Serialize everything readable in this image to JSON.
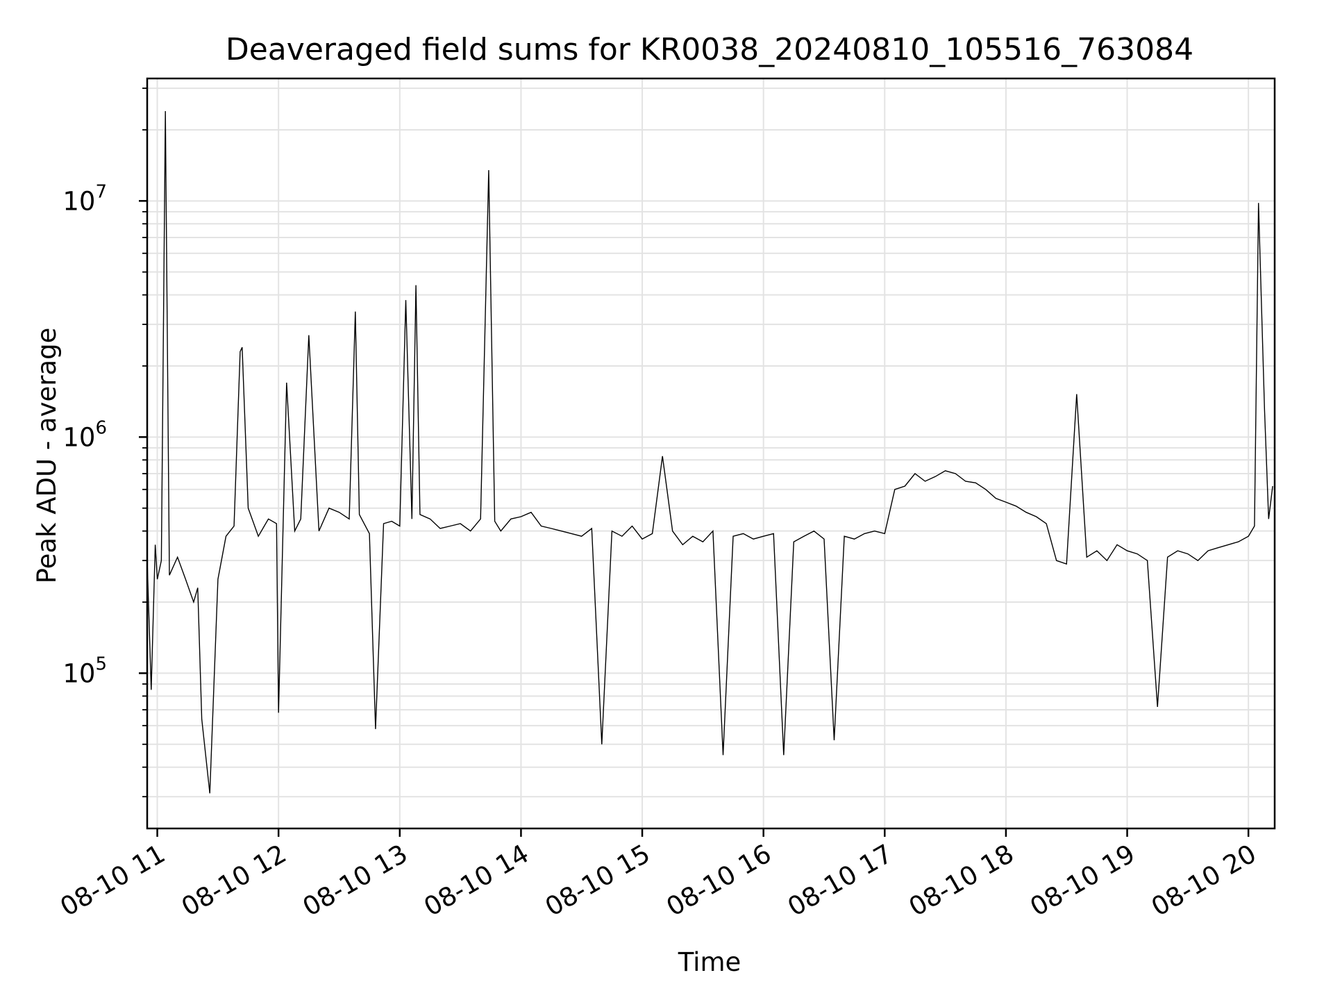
{
  "chart_data": {
    "type": "line",
    "title": "Deaveraged field sums for KR0038_20240810_105516_763084",
    "xlabel": "Time",
    "ylabel": "Peak ADU - average",
    "yscale": "log",
    "ylim": [
      22000,
      33000000
    ],
    "xlim": [
      "2024-08-10 10:55",
      "2024-08-10 20:13"
    ],
    "grid": true,
    "line_color": "#000000",
    "x_ticks": [
      {
        "t": "2024-08-10 11:00",
        "label": "08-10 11"
      },
      {
        "t": "2024-08-10 12:00",
        "label": "08-10 12"
      },
      {
        "t": "2024-08-10 13:00",
        "label": "08-10 13"
      },
      {
        "t": "2024-08-10 14:00",
        "label": "08-10 14"
      },
      {
        "t": "2024-08-10 15:00",
        "label": "08-10 15"
      },
      {
        "t": "2024-08-10 16:00",
        "label": "08-10 16"
      },
      {
        "t": "2024-08-10 17:00",
        "label": "08-10 17"
      },
      {
        "t": "2024-08-10 18:00",
        "label": "08-10 18"
      },
      {
        "t": "2024-08-10 19:00",
        "label": "08-10 19"
      },
      {
        "t": "2024-08-10 20:00",
        "label": "08-10 20"
      }
    ],
    "y_ticks": [
      {
        "value": 100000,
        "base": "10",
        "exp": "5"
      },
      {
        "value": 1000000,
        "base": "10",
        "exp": "6"
      },
      {
        "value": 10000000,
        "base": "10",
        "exp": "7"
      }
    ],
    "series": [
      {
        "x": [
          "2024-08-10 10:55",
          "2024-08-10 10:57",
          "2024-08-10 10:59",
          "2024-08-10 11:00",
          "2024-08-10 11:02",
          "2024-08-10 11:04",
          "2024-08-10 11:06",
          "2024-08-10 11:10",
          "2024-08-10 11:14",
          "2024-08-10 11:18",
          "2024-08-10 11:20",
          "2024-08-10 11:22",
          "2024-08-10 11:26",
          "2024-08-10 11:30",
          "2024-08-10 11:34",
          "2024-08-10 11:38",
          "2024-08-10 11:41",
          "2024-08-10 11:42",
          "2024-08-10 11:45",
          "2024-08-10 11:50",
          "2024-08-10 11:55",
          "2024-08-10 11:59",
          "2024-08-10 12:00",
          "2024-08-10 12:04",
          "2024-08-10 12:08",
          "2024-08-10 12:11",
          "2024-08-10 12:15",
          "2024-08-10 12:20",
          "2024-08-10 12:25",
          "2024-08-10 12:30",
          "2024-08-10 12:35",
          "2024-08-10 12:38",
          "2024-08-10 12:40",
          "2024-08-10 12:45",
          "2024-08-10 12:48",
          "2024-08-10 12:52",
          "2024-08-10 12:56",
          "2024-08-10 13:00",
          "2024-08-10 13:03",
          "2024-08-10 13:06",
          "2024-08-10 13:08",
          "2024-08-10 13:10",
          "2024-08-10 13:15",
          "2024-08-10 13:20",
          "2024-08-10 13:25",
          "2024-08-10 13:30",
          "2024-08-10 13:35",
          "2024-08-10 13:40",
          "2024-08-10 13:44",
          "2024-08-10 13:47",
          "2024-08-10 13:50",
          "2024-08-10 13:55",
          "2024-08-10 14:00",
          "2024-08-10 14:05",
          "2024-08-10 14:10",
          "2024-08-10 14:15",
          "2024-08-10 14:20",
          "2024-08-10 14:25",
          "2024-08-10 14:30",
          "2024-08-10 14:35",
          "2024-08-10 14:40",
          "2024-08-10 14:45",
          "2024-08-10 14:50",
          "2024-08-10 14:55",
          "2024-08-10 15:00",
          "2024-08-10 15:05",
          "2024-08-10 15:10",
          "2024-08-10 15:15",
          "2024-08-10 15:20",
          "2024-08-10 15:25",
          "2024-08-10 15:30",
          "2024-08-10 15:35",
          "2024-08-10 15:40",
          "2024-08-10 15:45",
          "2024-08-10 15:50",
          "2024-08-10 15:55",
          "2024-08-10 16:00",
          "2024-08-10 16:05",
          "2024-08-10 16:10",
          "2024-08-10 16:15",
          "2024-08-10 16:20",
          "2024-08-10 16:25",
          "2024-08-10 16:30",
          "2024-08-10 16:35",
          "2024-08-10 16:40",
          "2024-08-10 16:45",
          "2024-08-10 16:50",
          "2024-08-10 16:55",
          "2024-08-10 17:00",
          "2024-08-10 17:05",
          "2024-08-10 17:10",
          "2024-08-10 17:15",
          "2024-08-10 17:20",
          "2024-08-10 17:25",
          "2024-08-10 17:30",
          "2024-08-10 17:35",
          "2024-08-10 17:40",
          "2024-08-10 17:45",
          "2024-08-10 17:50",
          "2024-08-10 17:55",
          "2024-08-10 18:00",
          "2024-08-10 18:05",
          "2024-08-10 18:10",
          "2024-08-10 18:15",
          "2024-08-10 18:20",
          "2024-08-10 18:25",
          "2024-08-10 18:30",
          "2024-08-10 18:35",
          "2024-08-10 18:40",
          "2024-08-10 18:45",
          "2024-08-10 18:50",
          "2024-08-10 18:55",
          "2024-08-10 19:00",
          "2024-08-10 19:05",
          "2024-08-10 19:10",
          "2024-08-10 19:15",
          "2024-08-10 19:20",
          "2024-08-10 19:25",
          "2024-08-10 19:30",
          "2024-08-10 19:35",
          "2024-08-10 19:40",
          "2024-08-10 19:45",
          "2024-08-10 19:50",
          "2024-08-10 19:55",
          "2024-08-10 20:00",
          "2024-08-10 20:03",
          "2024-08-10 20:05",
          "2024-08-10 20:08",
          "2024-08-10 20:10",
          "2024-08-10 20:12"
        ],
        "values": [
          300000,
          85000,
          350000,
          250000,
          300000,
          24000000,
          260000,
          310000,
          250000,
          200000,
          230000,
          64000,
          31000,
          250000,
          380000,
          420000,
          2300000,
          2400000,
          500000,
          380000,
          450000,
          430000,
          68000,
          1700000,
          400000,
          450000,
          2700000,
          400000,
          500000,
          480000,
          450000,
          3400000,
          470000,
          390000,
          58000,
          430000,
          440000,
          420000,
          3800000,
          450000,
          4400000,
          470000,
          450000,
          410000,
          420000,
          430000,
          400000,
          450000,
          13500000,
          440000,
          400000,
          450000,
          460000,
          480000,
          420000,
          410000,
          400000,
          390000,
          380000,
          410000,
          50000,
          400000,
          380000,
          420000,
          370000,
          390000,
          830000,
          400000,
          350000,
          380000,
          360000,
          400000,
          45000,
          380000,
          390000,
          370000,
          380000,
          390000,
          45000,
          360000,
          380000,
          400000,
          370000,
          52000,
          380000,
          370000,
          390000,
          400000,
          390000,
          600000,
          620000,
          700000,
          650000,
          680000,
          720000,
          700000,
          650000,
          640000,
          600000,
          550000,
          530000,
          510000,
          480000,
          460000,
          430000,
          300000,
          290000,
          1520000,
          310000,
          330000,
          300000,
          350000,
          330000,
          320000,
          300000,
          72000,
          310000,
          330000,
          320000,
          300000,
          330000,
          340000,
          350000,
          360000,
          380000,
          420000,
          9800000,
          1300000,
          450000,
          620000
        ]
      }
    ]
  }
}
